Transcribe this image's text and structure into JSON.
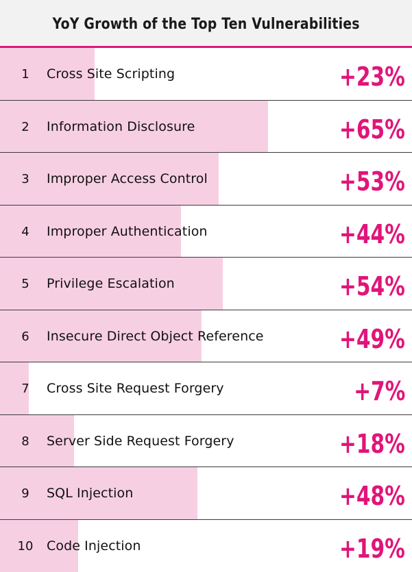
{
  "colors": {
    "accent": "#e0157a",
    "bar_fill": "#f7cfe3",
    "header_bg": "#f2f2f2"
  },
  "chart_data": {
    "type": "bar",
    "orientation": "horizontal",
    "title": "YoY Growth of the Top Ten Vulnerabilities",
    "xlim": [
      0,
      100
    ],
    "grid": false,
    "categories": [
      "Cross Site Scripting",
      "Information Disclosure",
      "Improper Access Control",
      "Improper Authentication",
      "Privilege Escalation",
      "Insecure Direct Object Reference",
      "Cross Site Request Forgery",
      "Server Side Request Forgery",
      "SQL Injection",
      "Code Injection"
    ],
    "values": [
      23,
      65,
      53,
      44,
      54,
      49,
      7,
      18,
      48,
      19
    ],
    "ranks": [
      "1",
      "2",
      "3",
      "4",
      "5",
      "6",
      "7",
      "8",
      "9",
      "10"
    ],
    "labels": [
      "+23%",
      "+65%",
      "+53%",
      "+44%",
      "+54%",
      "+49%",
      "+7%",
      "+18%",
      "+48%",
      "+19%"
    ]
  }
}
